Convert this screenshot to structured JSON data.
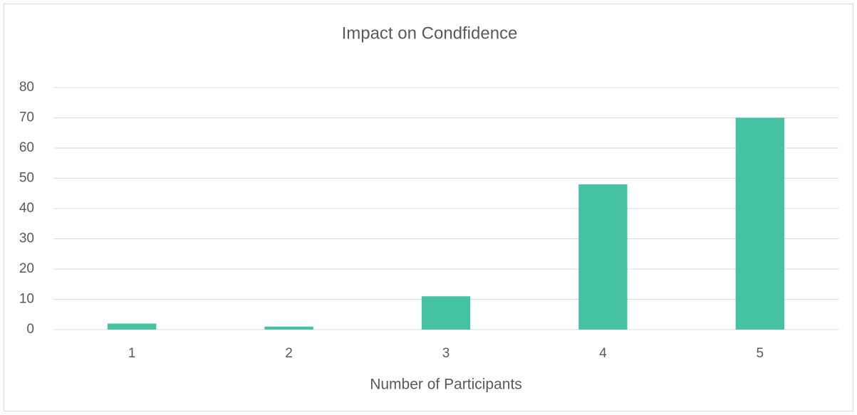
{
  "chart_data": {
    "type": "bar",
    "title": "Impact on Condfidence",
    "x_label": "Number of Participants",
    "categories": [
      "1",
      "2",
      "3",
      "4",
      "5"
    ],
    "values": [
      2,
      1,
      11,
      48,
      70
    ],
    "color": "#44c2a2",
    "ylim": [
      0,
      80
    ],
    "yticks": [
      0,
      10,
      20,
      30,
      40,
      50,
      60,
      70,
      80
    ],
    "grid": true
  }
}
